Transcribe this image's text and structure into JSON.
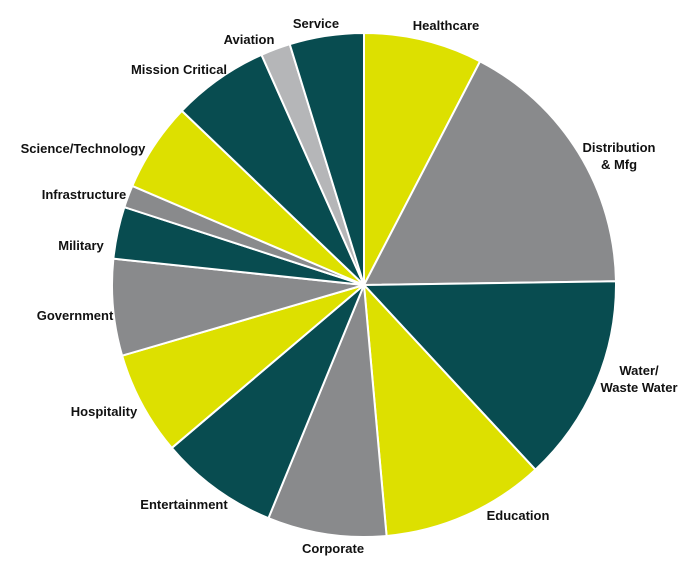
{
  "chart_data": {
    "type": "pie",
    "title": "",
    "legend": "none",
    "slices": [
      {
        "label": [
          "Healthcare"
        ],
        "value": 8,
        "color": "#dde000"
      },
      {
        "label": [
          "Distribution",
          "& Mfg"
        ],
        "value": 18,
        "color": "#898a8c"
      },
      {
        "label": [
          "Water/",
          "Waste Water"
        ],
        "value": 14,
        "color": "#084c50"
      },
      {
        "label": [
          "Education"
        ],
        "value": 11,
        "color": "#dde000"
      },
      {
        "label": [
          "Corporate"
        ],
        "value": 8,
        "color": "#898a8c"
      },
      {
        "label": [
          "Entertainment"
        ],
        "value": 8,
        "color": "#084c50"
      },
      {
        "label": [
          "Hospitality"
        ],
        "value": 7,
        "color": "#dde000"
      },
      {
        "label": [
          "Government"
        ],
        "value": 6.5,
        "color": "#898a8c"
      },
      {
        "label": [
          "Military"
        ],
        "value": 3.5,
        "color": "#084c50"
      },
      {
        "label": [
          "Infrastructure"
        ],
        "value": 1.5,
        "color": "#898a8c"
      },
      {
        "label": [
          "Science/Technology"
        ],
        "value": 6,
        "color": "#dde000"
      },
      {
        "label": [
          "Mission Critical"
        ],
        "value": 6.5,
        "color": "#084c50"
      },
      {
        "label": [
          "Aviation"
        ],
        "value": 2,
        "color": "#b5b6b8"
      },
      {
        "label": [
          "Service"
        ],
        "value": 5,
        "color": "#084c50"
      }
    ]
  }
}
